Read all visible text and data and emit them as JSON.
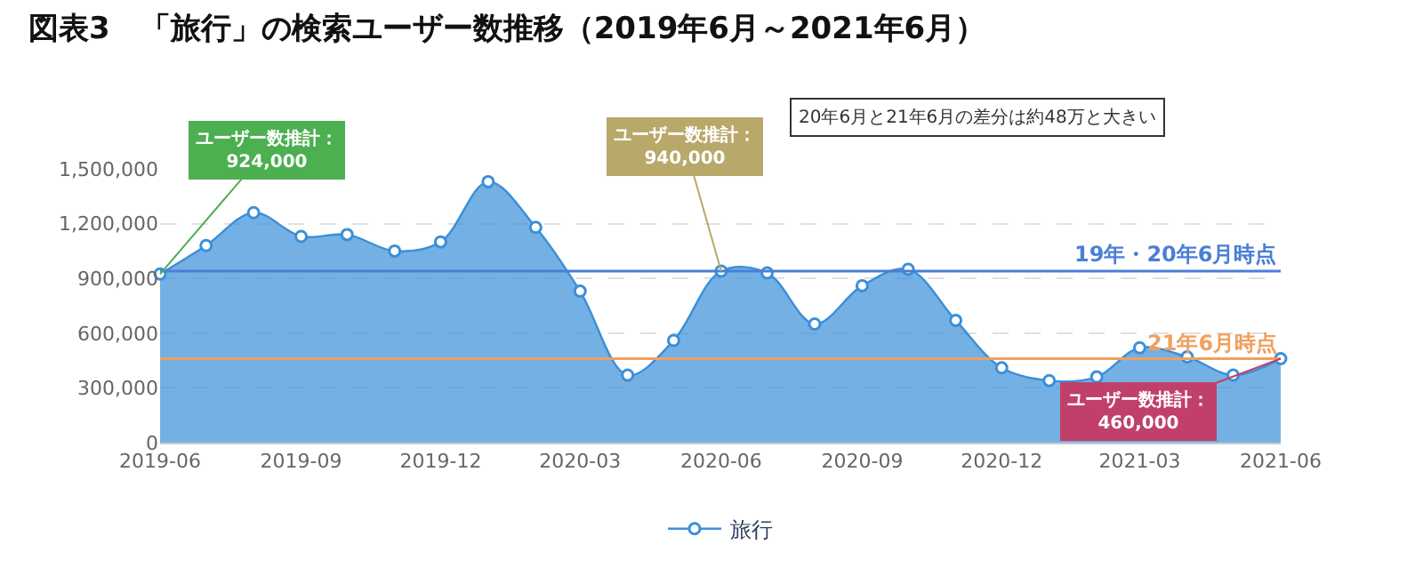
{
  "chart_data": {
    "type": "area",
    "title": "図表3　「旅行」の検索ユーザー数推移（2019年6月～2021年6月）",
    "x": [
      "2019-06",
      "2019-07",
      "2019-08",
      "2019-09",
      "2019-10",
      "2019-11",
      "2019-12",
      "2020-01",
      "2020-02",
      "2020-03",
      "2020-04",
      "2020-05",
      "2020-06",
      "2020-07",
      "2020-08",
      "2020-09",
      "2020-10",
      "2020-11",
      "2020-12",
      "2021-01",
      "2021-02",
      "2021-03",
      "2021-04",
      "2021-05",
      "2021-06"
    ],
    "series": [
      {
        "name": "旅行",
        "color": "#3a8fd9",
        "values": [
          924000,
          1080000,
          1260000,
          1130000,
          1140000,
          1050000,
          1100000,
          1430000,
          1180000,
          830000,
          370000,
          560000,
          940000,
          930000,
          650000,
          860000,
          950000,
          670000,
          410000,
          340000,
          360000,
          520000,
          470000,
          370000,
          460000
        ]
      }
    ],
    "xlim": [
      "2019-06",
      "2021-06"
    ],
    "xticks": [
      {
        "value": "2019-06",
        "label": "2019-06"
      },
      {
        "value": "2019-09",
        "label": "2019-09"
      },
      {
        "value": "2019-12",
        "label": "2019-12"
      },
      {
        "value": "2020-03",
        "label": "2020-03"
      },
      {
        "value": "2020-06",
        "label": "2020-06"
      },
      {
        "value": "2020-09",
        "label": "2020-09"
      },
      {
        "value": "2020-12",
        "label": "2020-12"
      },
      {
        "value": "2021-03",
        "label": "2021-03"
      },
      {
        "value": "2021-06",
        "label": "2021-06"
      }
    ],
    "ylim": [
      0,
      1500000
    ],
    "yticks": [
      {
        "value": 0,
        "label": "0"
      },
      {
        "value": 300000,
        "label": "300,000"
      },
      {
        "value": 600000,
        "label": "600,000"
      },
      {
        "value": 900000,
        "label": "900,000"
      },
      {
        "value": 1200000,
        "label": "1,200,000"
      },
      {
        "value": 1500000,
        "label": "1,500,000"
      }
    ],
    "ref_lines": [
      {
        "axis": "y",
        "value": 940000,
        "label": "19年・20年6月時点",
        "color": "#4a7fd6"
      },
      {
        "axis": "y",
        "value": 460000,
        "label": "21年6月時点",
        "color": "#f0a060"
      }
    ],
    "annotations": [
      {
        "text": "ユーザー数推計：\n924,000",
        "x": "2019-06",
        "y": 924000
      },
      {
        "text": "ユーザー数推計：\n940,000",
        "x": "2020-06",
        "y": 940000
      },
      {
        "text": "ユーザー数推計：\n460,000",
        "x": "2021-06",
        "y": 460000
      },
      "20年6月と21年6月の差分は約48万と大きい"
    ],
    "grid": "y",
    "legend": "bottom",
    "marker": "circle",
    "line_style": "solid"
  }
}
